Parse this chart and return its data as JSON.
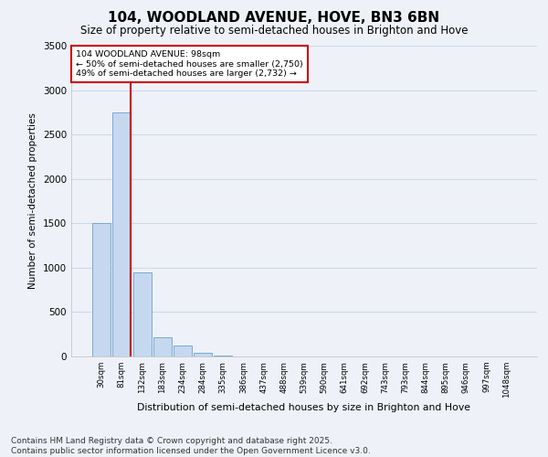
{
  "title": "104, WOODLAND AVENUE, HOVE, BN3 6BN",
  "subtitle": "Size of property relative to semi-detached houses in Brighton and Hove",
  "xlabel": "Distribution of semi-detached houses by size in Brighton and Hove",
  "ylabel": "Number of semi-detached properties",
  "categories": [
    "30sqm",
    "81sqm",
    "132sqm",
    "183sqm",
    "234sqm",
    "284sqm",
    "335sqm",
    "386sqm",
    "437sqm",
    "488sqm",
    "539sqm",
    "590sqm",
    "641sqm",
    "692sqm",
    "743sqm",
    "793sqm",
    "844sqm",
    "895sqm",
    "946sqm",
    "997sqm",
    "1048sqm"
  ],
  "values": [
    1500,
    2750,
    950,
    220,
    120,
    45,
    8,
    2,
    1,
    0,
    0,
    0,
    0,
    0,
    0,
    0,
    0,
    0,
    0,
    0,
    0
  ],
  "bar_color": "#c5d8f0",
  "bar_edge_color": "#7aaad0",
  "property_line_x": 1.45,
  "annotation_title": "104 WOODLAND AVENUE: 98sqm",
  "annotation_line1": "← 50% of semi-detached houses are smaller (2,750)",
  "annotation_line2": "49% of semi-detached houses are larger (2,732) →",
  "annotation_box_color": "#ffffff",
  "annotation_box_edge": "#cc0000",
  "property_line_color": "#cc0000",
  "ylim": [
    0,
    3500
  ],
  "yticks": [
    0,
    500,
    1000,
    1500,
    2000,
    2500,
    3000,
    3500
  ],
  "grid_color": "#d0d8e8",
  "bg_color": "#eef2f8",
  "footer_line1": "Contains HM Land Registry data © Crown copyright and database right 2025.",
  "footer_line2": "Contains public sector information licensed under the Open Government Licence v3.0.",
  "title_fontsize": 11,
  "subtitle_fontsize": 8.5,
  "footer_fontsize": 6.5
}
